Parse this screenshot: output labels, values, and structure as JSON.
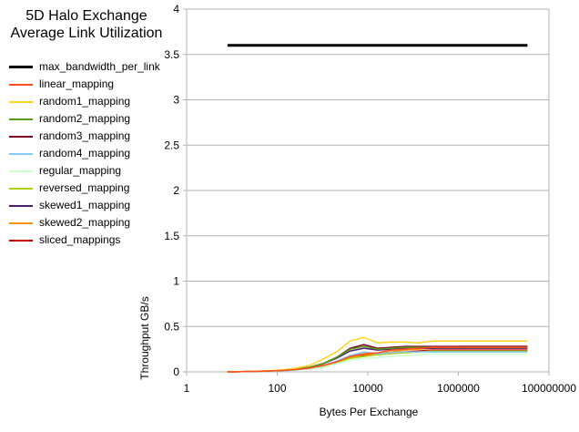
{
  "chart_data": {
    "type": "line",
    "title": [
      "5D Halo Exchange",
      "Average Link Utilization"
    ],
    "xlabel": "Bytes Per Exchange",
    "ylabel": "Throughput GB/s",
    "xscale": "log",
    "xlim": [
      1,
      100000000
    ],
    "ylim": [
      0,
      4
    ],
    "x_tick_values": [
      1,
      100,
      10000,
      1000000,
      100000000
    ],
    "x_tick_labels": [
      "1",
      "100",
      "10000",
      "1000000",
      "100000000"
    ],
    "y_tick_values": [
      0,
      0.5,
      1,
      1.5,
      2,
      2.5,
      3,
      3.5,
      4
    ],
    "y_tick_labels": [
      "0",
      "0.5",
      "1",
      "1.5",
      "2",
      "2.5",
      "3",
      "3.5",
      "4"
    ],
    "grid": "horizontal",
    "legend_position": "left",
    "x": [
      8,
      16,
      32,
      64,
      128,
      256,
      512,
      1024,
      2048,
      4096,
      8192,
      16384,
      32768,
      65536,
      131072,
      262144,
      524288,
      1048576,
      2097152,
      4194304,
      8388608,
      16777216,
      33554432
    ],
    "series": [
      {
        "name": "max_bandwidth_per_link",
        "color": "#000000",
        "width": 3,
        "values": [
          3.6,
          3.6,
          3.6,
          3.6,
          3.6,
          3.6,
          3.6,
          3.6,
          3.6,
          3.6,
          3.6,
          3.6,
          3.6,
          3.6,
          3.6,
          3.6,
          3.6,
          3.6,
          3.6,
          3.6,
          3.6,
          3.6,
          3.6
        ]
      },
      {
        "name": "linear_mapping",
        "color": "#ff4f20",
        "width": 1.5,
        "values": [
          0,
          0.002,
          0.005,
          0.01,
          0.015,
          0.025,
          0.04,
          0.07,
          0.11,
          0.17,
          0.2,
          0.21,
          0.24,
          0.25,
          0.26,
          0.27,
          0.27,
          0.27,
          0.27,
          0.27,
          0.27,
          0.27,
          0.27
        ]
      },
      {
        "name": "random1_mapping",
        "color": "#ffd320",
        "width": 1.5,
        "values": [
          0,
          0.003,
          0.007,
          0.013,
          0.022,
          0.04,
          0.07,
          0.14,
          0.22,
          0.34,
          0.38,
          0.32,
          0.33,
          0.33,
          0.32,
          0.34,
          0.34,
          0.34,
          0.34,
          0.34,
          0.34,
          0.34,
          0.34
        ]
      },
      {
        "name": "random2_mapping",
        "color": "#579d1c",
        "width": 1.5,
        "values": [
          0,
          0.002,
          0.005,
          0.01,
          0.016,
          0.028,
          0.05,
          0.09,
          0.16,
          0.25,
          0.28,
          0.25,
          0.26,
          0.27,
          0.27,
          0.27,
          0.27,
          0.27,
          0.27,
          0.27,
          0.27,
          0.27,
          0.27
        ]
      },
      {
        "name": "random3_mapping",
        "color": "#7e0021",
        "width": 1.5,
        "values": [
          0,
          0.002,
          0.005,
          0.01,
          0.016,
          0.028,
          0.05,
          0.09,
          0.16,
          0.26,
          0.3,
          0.26,
          0.27,
          0.28,
          0.28,
          0.28,
          0.28,
          0.28,
          0.28,
          0.28,
          0.28,
          0.28,
          0.28
        ]
      },
      {
        "name": "random4_mapping",
        "color": "#83caff",
        "width": 1.5,
        "values": [
          0,
          0.002,
          0.004,
          0.008,
          0.013,
          0.022,
          0.04,
          0.07,
          0.12,
          0.18,
          0.22,
          0.2,
          0.21,
          0.22,
          0.22,
          0.22,
          0.22,
          0.22,
          0.22,
          0.22,
          0.22,
          0.22,
          0.22
        ]
      },
      {
        "name": "regular_mapping",
        "color": "#ccffcc",
        "width": 1.5,
        "values": [
          0,
          0.002,
          0.004,
          0.007,
          0.011,
          0.018,
          0.03,
          0.05,
          0.09,
          0.13,
          0.15,
          0.16,
          0.17,
          0.18,
          0.19,
          0.2,
          0.2,
          0.2,
          0.2,
          0.2,
          0.2,
          0.2,
          0.2
        ]
      },
      {
        "name": "reversed_mapping",
        "color": "#aecf00",
        "width": 1.5,
        "values": [
          0,
          0.002,
          0.004,
          0.008,
          0.012,
          0.02,
          0.035,
          0.06,
          0.1,
          0.15,
          0.17,
          0.19,
          0.2,
          0.21,
          0.22,
          0.23,
          0.23,
          0.23,
          0.23,
          0.23,
          0.23,
          0.23,
          0.23
        ]
      },
      {
        "name": "skewed1_mapping",
        "color": "#4b1f6f",
        "width": 1.5,
        "values": [
          0,
          0.002,
          0.005,
          0.01,
          0.016,
          0.028,
          0.05,
          0.09,
          0.15,
          0.23,
          0.26,
          0.24,
          0.25,
          0.26,
          0.26,
          0.26,
          0.26,
          0.26,
          0.26,
          0.26,
          0.26,
          0.26,
          0.26
        ]
      },
      {
        "name": "skewed2_mapping",
        "color": "#ff950e",
        "width": 1.5,
        "values": [
          0,
          0.002,
          0.004,
          0.008,
          0.013,
          0.022,
          0.04,
          0.07,
          0.11,
          0.16,
          0.19,
          0.2,
          0.22,
          0.24,
          0.25,
          0.26,
          0.27,
          0.28,
          0.28,
          0.28,
          0.28,
          0.28,
          0.28
        ]
      },
      {
        "name": "sliced_mappings",
        "color": "#c5000b",
        "width": 1.5,
        "values": [
          0,
          0.002,
          0.004,
          0.008,
          0.013,
          0.022,
          0.04,
          0.07,
          0.11,
          0.16,
          0.18,
          0.19,
          0.21,
          0.22,
          0.23,
          0.24,
          0.24,
          0.24,
          0.24,
          0.24,
          0.24,
          0.24,
          0.24
        ]
      }
    ]
  }
}
